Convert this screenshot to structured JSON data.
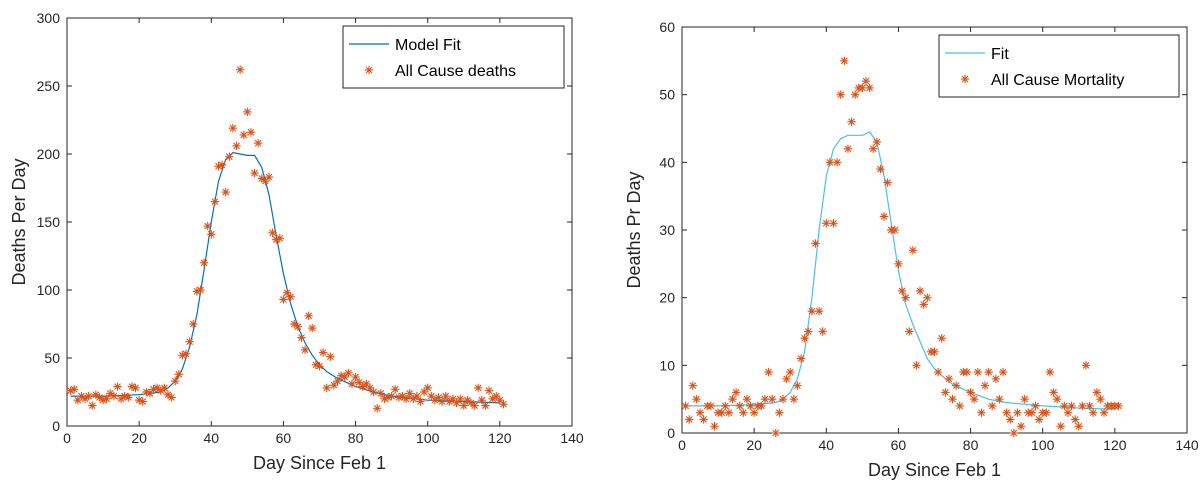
{
  "chart_data": [
    {
      "type": "scatter",
      "title": "",
      "xlabel": "Day Since Feb 1",
      "ylabel": "Deaths Per Day",
      "xlim": [
        0,
        140
      ],
      "ylim": [
        0,
        300
      ],
      "xticks": [
        0,
        20,
        40,
        60,
        80,
        100,
        120,
        140
      ],
      "yticks": [
        0,
        50,
        100,
        150,
        200,
        250,
        300
      ],
      "grid": false,
      "legend_position": "top-right",
      "colors": {
        "line": "#0072BD",
        "markers": "#D95319",
        "axes": "#262626"
      },
      "series": [
        {
          "name": "Model Fit",
          "kind": "line",
          "x": [
            1,
            10,
            20,
            26,
            28,
            30,
            32,
            34,
            36,
            38,
            40,
            42,
            44,
            46,
            48,
            50,
            52,
            54,
            56,
            58,
            60,
            62,
            64,
            66,
            68,
            70,
            72,
            75,
            80,
            85,
            90,
            100,
            110,
            120
          ],
          "y": [
            22,
            22,
            23,
            25,
            28,
            33,
            42,
            58,
            82,
            115,
            150,
            180,
            196,
            201,
            200,
            199,
            199,
            190,
            170,
            140,
            112,
            90,
            73,
            61,
            52,
            45,
            40,
            35,
            29,
            25,
            22,
            19,
            18,
            17
          ]
        },
        {
          "name": "All Cause deaths",
          "kind": "markers",
          "x": [
            1,
            2,
            3,
            4,
            5,
            6,
            7,
            8,
            9,
            10,
            11,
            12,
            13,
            14,
            15,
            16,
            17,
            18,
            19,
            20,
            21,
            22,
            23,
            24,
            25,
            26,
            27,
            28,
            29,
            30,
            31,
            32,
            33,
            34,
            35,
            36,
            37,
            38,
            39,
            40,
            41,
            42,
            43,
            44,
            45,
            46,
            47,
            48,
            49,
            50,
            51,
            52,
            53,
            54,
            55,
            56,
            57,
            58,
            59,
            60,
            61,
            62,
            63,
            64,
            65,
            66,
            67,
            68,
            69,
            70,
            71,
            72,
            73,
            74,
            75,
            76,
            77,
            78,
            79,
            80,
            81,
            82,
            83,
            84,
            85,
            86,
            87,
            88,
            89,
            90,
            91,
            92,
            93,
            94,
            95,
            96,
            97,
            98,
            99,
            100,
            101,
            102,
            103,
            104,
            105,
            106,
            107,
            108,
            109,
            110,
            111,
            112,
            113,
            114,
            115,
            116,
            117,
            118,
            119,
            120,
            121
          ],
          "y": [
            26,
            27,
            19,
            22,
            20,
            22,
            15,
            23,
            21,
            19,
            20,
            24,
            22,
            29,
            20,
            22,
            21,
            29,
            28,
            19,
            18,
            25,
            24,
            27,
            28,
            26,
            28,
            23,
            21,
            33,
            38,
            52,
            53,
            62,
            75,
            99,
            100,
            120,
            147,
            141,
            165,
            191,
            192,
            172,
            198,
            219,
            206,
            262,
            214,
            231,
            216,
            186,
            208,
            182,
            180,
            183,
            142,
            137,
            138,
            93,
            98,
            95,
            75,
            73,
            65,
            56,
            81,
            72,
            45,
            44,
            54,
            28,
            51,
            30,
            33,
            37,
            36,
            39,
            31,
            36,
            32,
            29,
            31,
            28,
            25,
            13,
            24,
            20,
            21,
            22,
            27,
            21,
            22,
            20,
            24,
            20,
            22,
            18,
            25,
            28,
            22,
            19,
            21,
            18,
            22,
            18,
            20,
            17,
            20,
            15,
            19,
            17,
            15,
            28,
            19,
            15,
            26,
            20,
            22,
            19,
            16
          ]
        }
      ]
    },
    {
      "type": "scatter",
      "title": "",
      "xlabel": "Day Since Feb 1",
      "ylabel": "Deaths Pr Day",
      "xlim": [
        0,
        140
      ],
      "ylim": [
        0,
        60
      ],
      "xticks": [
        0,
        20,
        40,
        60,
        80,
        100,
        120,
        140
      ],
      "yticks": [
        0,
        10,
        20,
        30,
        40,
        50,
        60
      ],
      "grid": false,
      "legend_position": "top-right",
      "colors": {
        "line": "#4DBEEE",
        "markers": "#D95319",
        "axes": "#262626"
      },
      "series": [
        {
          "name": "Fit",
          "kind": "line",
          "x": [
            1,
            10,
            20,
            26,
            28,
            30,
            32,
            34,
            36,
            38,
            40,
            42,
            44,
            46,
            48,
            50,
            52,
            54,
            56,
            58,
            60,
            62,
            64,
            66,
            68,
            70,
            72,
            75,
            80,
            85,
            90,
            100,
            110,
            120
          ],
          "y": [
            4,
            4,
            4.2,
            4.5,
            5,
            6,
            8,
            12,
            20,
            30,
            38,
            42,
            43.5,
            44,
            44,
            44,
            44.5,
            43,
            38,
            31,
            24,
            19,
            16,
            13.5,
            11,
            9.5,
            8.5,
            7.2,
            6,
            5,
            4.5,
            4,
            3.7,
            3.5
          ]
        },
        {
          "name": "All Cause Mortality",
          "kind": "markers",
          "x": [
            1,
            2,
            3,
            4,
            5,
            6,
            7,
            8,
            9,
            10,
            11,
            12,
            13,
            14,
            15,
            16,
            17,
            18,
            19,
            20,
            21,
            22,
            23,
            24,
            25,
            26,
            27,
            28,
            29,
            30,
            31,
            32,
            33,
            34,
            35,
            36,
            37,
            38,
            39,
            40,
            41,
            42,
            43,
            44,
            45,
            46,
            47,
            48,
            49,
            50,
            51,
            52,
            53,
            54,
            55,
            56,
            57,
            58,
            59,
            60,
            61,
            62,
            63,
            64,
            65,
            66,
            67,
            68,
            69,
            70,
            71,
            72,
            73,
            74,
            75,
            76,
            77,
            78,
            79,
            80,
            81,
            82,
            83,
            84,
            85,
            86,
            87,
            88,
            89,
            90,
            91,
            92,
            93,
            94,
            95,
            96,
            97,
            98,
            99,
            100,
            101,
            102,
            103,
            104,
            105,
            106,
            107,
            108,
            109,
            110,
            111,
            112,
            113,
            114,
            115,
            116,
            117,
            118,
            119,
            120,
            121
          ],
          "y": [
            4,
            2,
            7,
            5,
            3,
            2,
            4,
            4,
            1,
            3,
            3,
            4,
            3,
            5,
            6,
            4,
            3,
            5,
            4,
            3,
            4,
            4,
            5,
            9,
            5,
            0,
            3,
            5,
            8,
            9,
            5,
            7,
            11,
            14,
            15,
            18,
            28,
            18,
            15,
            31,
            40,
            31,
            40,
            50,
            55,
            42,
            46,
            50,
            51,
            51,
            52,
            51,
            42,
            43,
            39,
            32,
            37,
            30,
            30,
            25,
            21,
            20,
            15,
            27,
            10,
            21,
            19,
            20,
            12,
            12,
            9,
            14,
            6,
            8,
            5,
            7,
            4,
            9,
            9,
            6,
            5,
            9,
            3,
            7,
            9,
            4,
            8,
            5,
            9,
            3,
            2,
            0,
            3,
            1,
            5,
            3,
            3,
            4,
            2,
            3,
            3,
            9,
            6,
            5,
            1,
            4,
            3,
            4,
            2,
            1,
            4,
            10,
            4,
            3,
            6,
            5,
            3,
            4,
            4,
            4,
            4
          ]
        }
      ]
    }
  ]
}
